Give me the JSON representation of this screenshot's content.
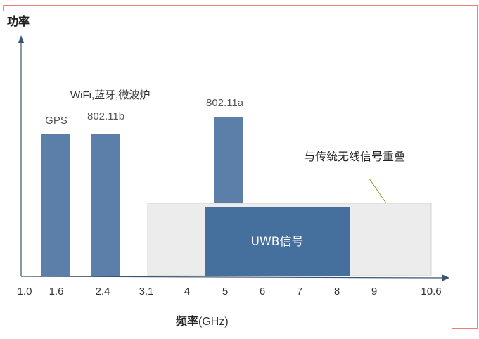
{
  "y_axis_label": "功率",
  "x_axis_label": "频率",
  "x_axis_unit": "(GHz)",
  "ticks": [
    "1.0",
    "1.6",
    "2.4",
    "3.1",
    "4",
    "5",
    "6",
    "7",
    "8",
    "9",
    "10.6"
  ],
  "bands": {
    "gps": "GPS",
    "wifi_group": "WiFi,蓝牙,微波炉",
    "b80211b": "802.11b",
    "b80211a": "802.11a",
    "uwb": "UWB信号",
    "overlap_note": "与传统无线信号重叠"
  },
  "colors": {
    "bar": "#5b7fa8",
    "uwb": "#456f9c",
    "overlap": "#ececec",
    "axis": "#3c5470",
    "frame": "#e03020"
  }
}
